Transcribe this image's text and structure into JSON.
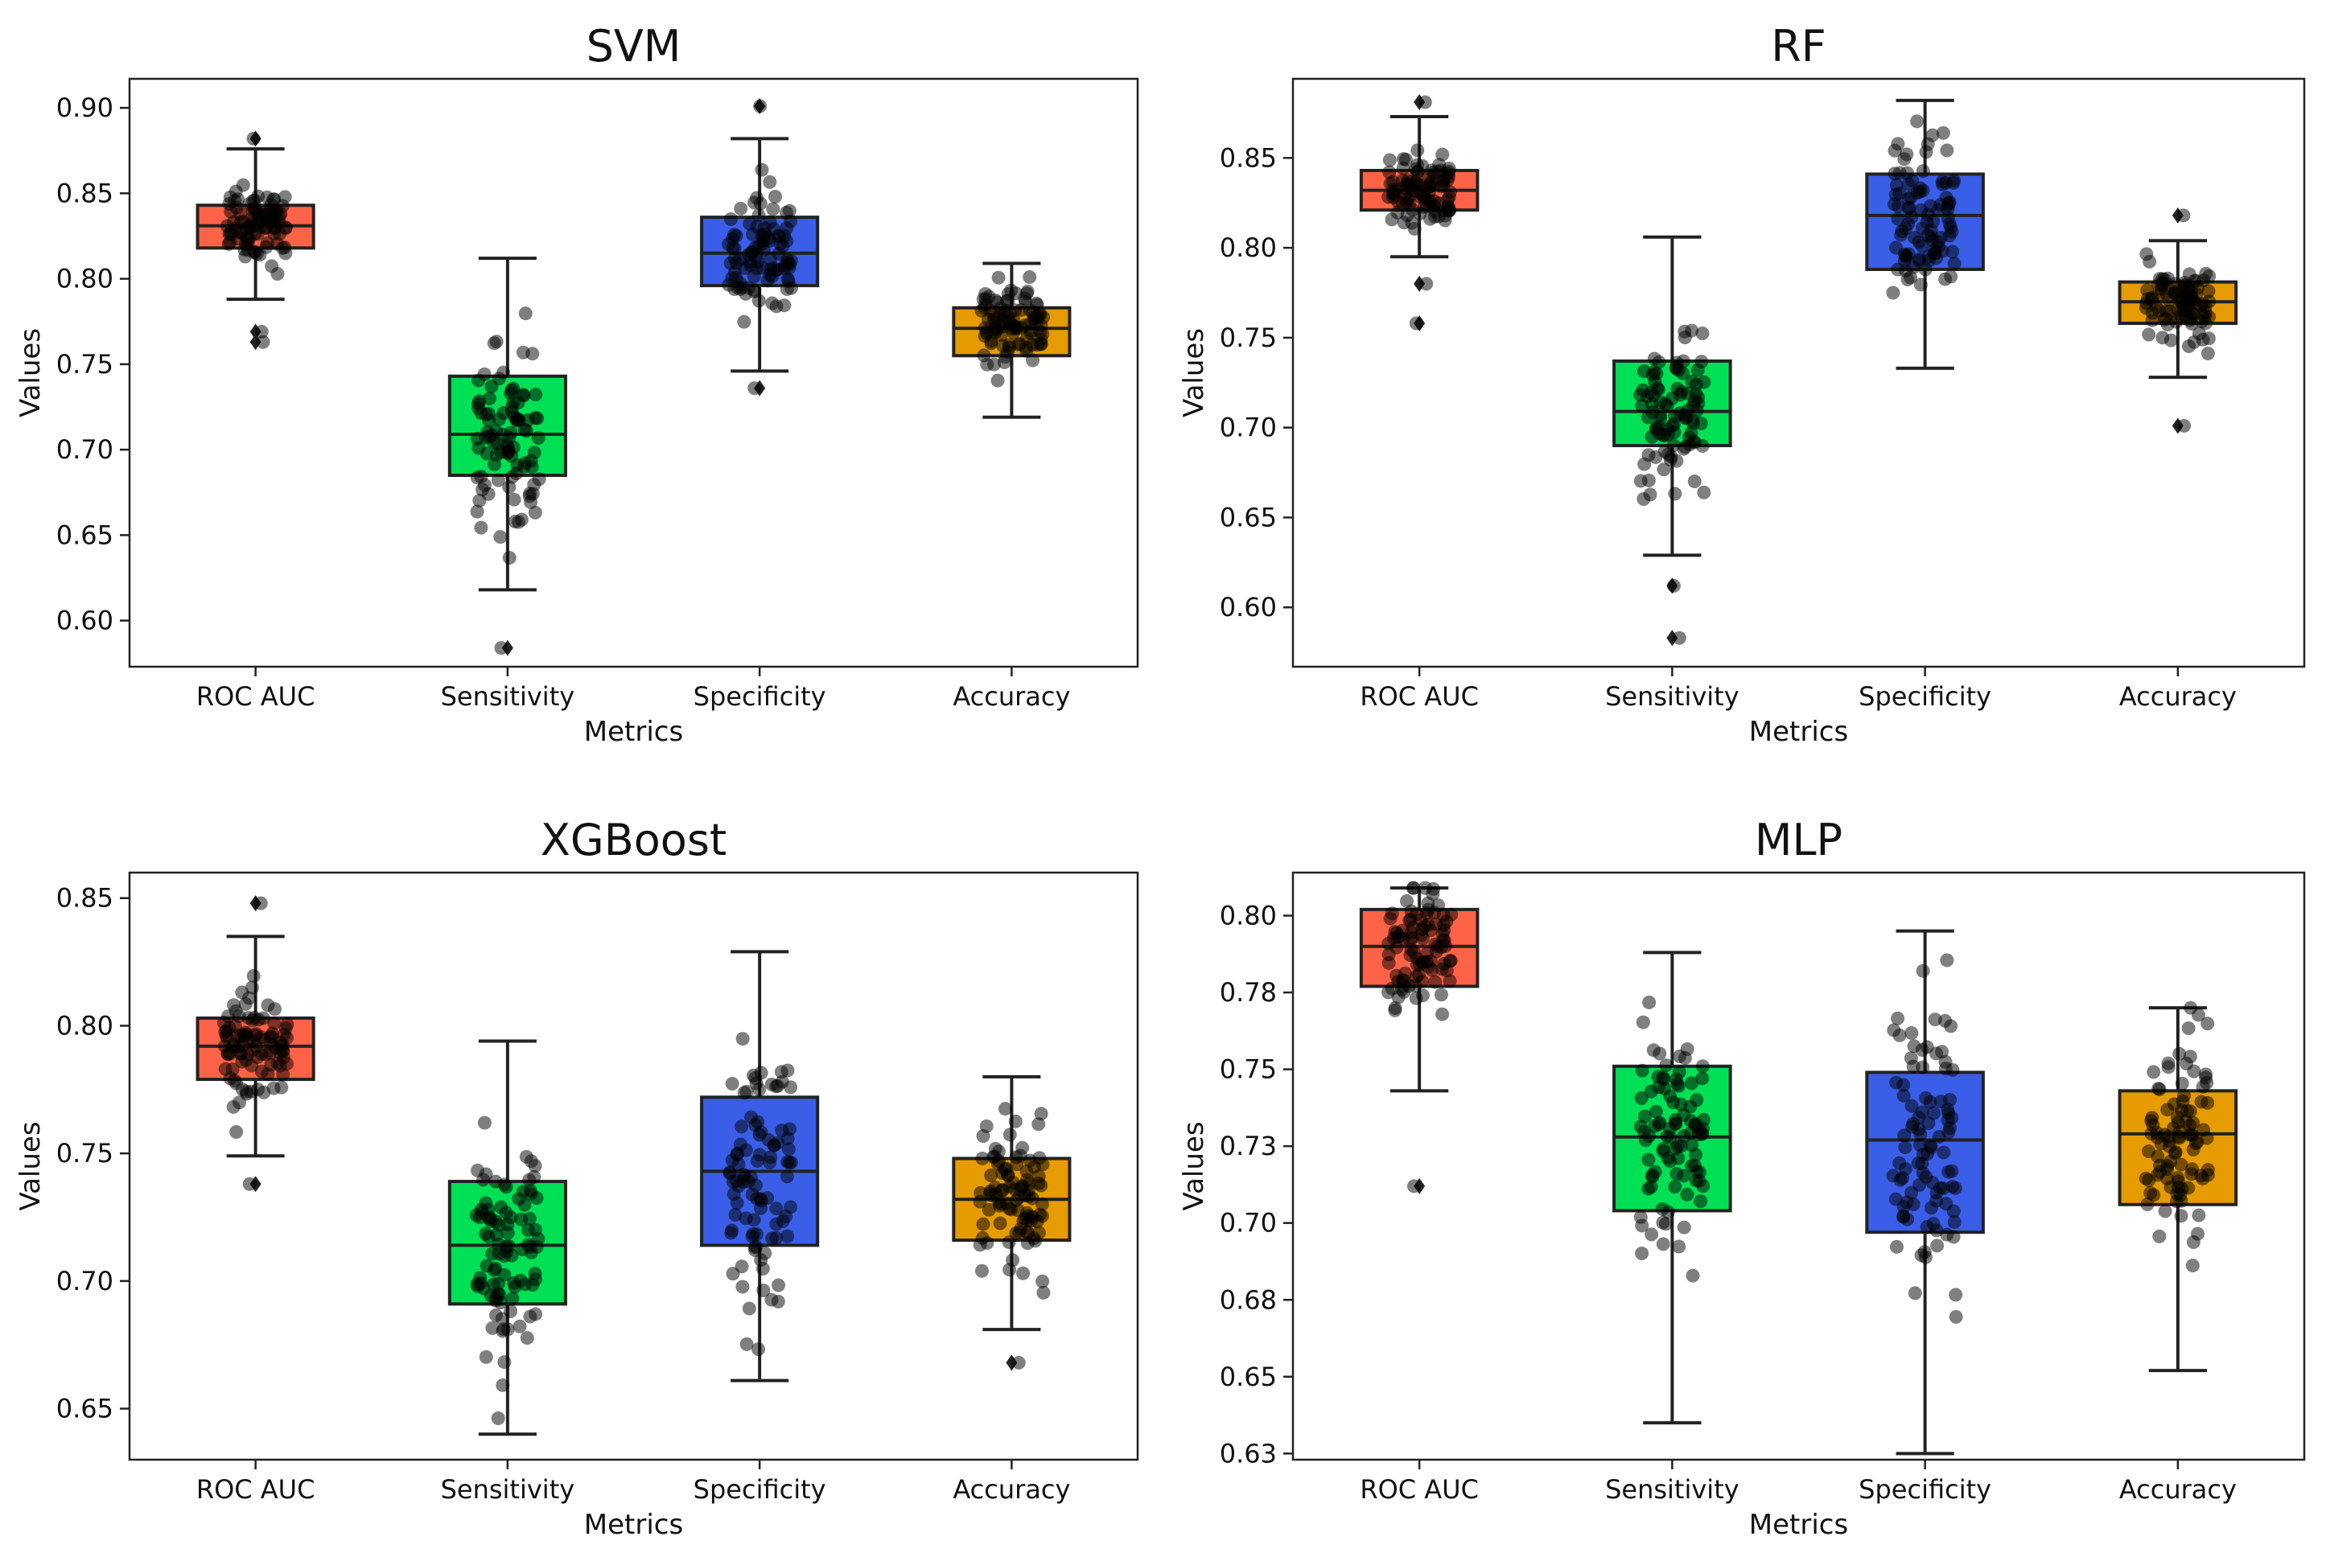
{
  "chart_data": [
    {
      "type": "box",
      "title": "SVM",
      "xlabel": "Metrics",
      "ylabel": "Values",
      "ylim": [
        0.573,
        0.917
      ],
      "yticks": [
        0.6,
        0.65,
        0.7,
        0.75,
        0.8,
        0.85,
        0.9
      ],
      "ytick_labels": [
        "0.60",
        "0.65",
        "0.70",
        "0.75",
        "0.80",
        "0.85",
        "0.90"
      ],
      "categories": [
        "ROC AUC",
        "Sensitivity",
        "Specificity",
        "Accuracy"
      ],
      "boxes": [
        {
          "category": "ROC AUC",
          "color": "#ff6347",
          "whisker_low": 0.788,
          "q1": 0.818,
          "median": 0.831,
          "q3": 0.843,
          "whisker_high": 0.876,
          "outliers": [
            0.763,
            0.769,
            0.882
          ]
        },
        {
          "category": "Sensitivity",
          "color": "#00e054",
          "whisker_low": 0.618,
          "q1": 0.685,
          "median": 0.709,
          "q3": 0.743,
          "whisker_high": 0.812,
          "outliers": [
            0.584
          ]
        },
        {
          "category": "Specificity",
          "color": "#3a5ee8",
          "whisker_low": 0.746,
          "q1": 0.796,
          "median": 0.815,
          "q3": 0.836,
          "whisker_high": 0.882,
          "outliers": [
            0.736,
            0.901
          ]
        },
        {
          "category": "Accuracy",
          "color": "#e69b00",
          "whisker_low": 0.719,
          "q1": 0.755,
          "median": 0.771,
          "q3": 0.783,
          "whisker_high": 0.809,
          "outliers": []
        }
      ]
    },
    {
      "type": "box",
      "title": "RF",
      "xlabel": "Metrics",
      "ylabel": "Values",
      "ylim": [
        0.567,
        0.894
      ],
      "yticks": [
        0.6,
        0.65,
        0.7,
        0.75,
        0.8,
        0.85
      ],
      "ytick_labels": [
        "0.60",
        "0.65",
        "0.70",
        "0.75",
        "0.80",
        "0.85"
      ],
      "categories": [
        "ROC AUC",
        "Sensitivity",
        "Specificity",
        "Accuracy"
      ],
      "boxes": [
        {
          "category": "ROC AUC",
          "color": "#ff6347",
          "whisker_low": 0.795,
          "q1": 0.821,
          "median": 0.832,
          "q3": 0.843,
          "whisker_high": 0.873,
          "outliers": [
            0.758,
            0.78,
            0.881
          ]
        },
        {
          "category": "Sensitivity",
          "color": "#00e054",
          "whisker_low": 0.629,
          "q1": 0.69,
          "median": 0.709,
          "q3": 0.737,
          "whisker_high": 0.806,
          "outliers": [
            0.583,
            0.612
          ]
        },
        {
          "category": "Specificity",
          "color": "#3a5ee8",
          "whisker_low": 0.733,
          "q1": 0.788,
          "median": 0.818,
          "q3": 0.841,
          "whisker_high": 0.882,
          "outliers": []
        },
        {
          "category": "Accuracy",
          "color": "#e69b00",
          "whisker_low": 0.728,
          "q1": 0.758,
          "median": 0.77,
          "q3": 0.781,
          "whisker_high": 0.804,
          "outliers": [
            0.701,
            0.818
          ]
        }
      ]
    },
    {
      "type": "box",
      "title": "XGBoost",
      "xlabel": "Metrics",
      "ylabel": "Values",
      "ylim": [
        0.63,
        0.86
      ],
      "yticks": [
        0.65,
        0.7,
        0.75,
        0.8,
        0.85
      ],
      "ytick_labels": [
        "0.65",
        "0.70",
        "0.75",
        "0.80",
        "0.85"
      ],
      "categories": [
        "ROC AUC",
        "Sensitivity",
        "Specificity",
        "Accuracy"
      ],
      "boxes": [
        {
          "category": "ROC AUC",
          "color": "#ff6347",
          "whisker_low": 0.749,
          "q1": 0.779,
          "median": 0.792,
          "q3": 0.803,
          "whisker_high": 0.835,
          "outliers": [
            0.738,
            0.848
          ]
        },
        {
          "category": "Sensitivity",
          "color": "#00e054",
          "whisker_low": 0.64,
          "q1": 0.691,
          "median": 0.714,
          "q3": 0.739,
          "whisker_high": 0.794,
          "outliers": []
        },
        {
          "category": "Specificity",
          "color": "#3a5ee8",
          "whisker_low": 0.661,
          "q1": 0.714,
          "median": 0.743,
          "q3": 0.772,
          "whisker_high": 0.829,
          "outliers": []
        },
        {
          "category": "Accuracy",
          "color": "#e69b00",
          "whisker_low": 0.681,
          "q1": 0.716,
          "median": 0.732,
          "q3": 0.748,
          "whisker_high": 0.78,
          "outliers": [
            0.668
          ]
        }
      ]
    },
    {
      "type": "box",
      "title": "MLP",
      "xlabel": "Metrics",
      "ylabel": "Values",
      "ylim": [
        0.623,
        0.814
      ],
      "yticks": [
        0.625,
        0.65,
        0.675,
        0.7,
        0.725,
        0.75,
        0.775,
        0.8
      ],
      "ytick_labels": [
        "0.63",
        "0.65",
        "0.68",
        "0.70",
        "0.73",
        "0.75",
        "0.78",
        "0.80"
      ],
      "categories": [
        "ROC AUC",
        "Sensitivity",
        "Specificity",
        "Accuracy"
      ],
      "boxes": [
        {
          "category": "ROC AUC",
          "color": "#ff6347",
          "whisker_low": 0.743,
          "q1": 0.777,
          "median": 0.79,
          "q3": 0.802,
          "whisker_high": 0.809,
          "outliers": [
            0.712
          ]
        },
        {
          "category": "Sensitivity",
          "color": "#00e054",
          "whisker_low": 0.635,
          "q1": 0.704,
          "median": 0.728,
          "q3": 0.751,
          "whisker_high": 0.788,
          "outliers": []
        },
        {
          "category": "Specificity",
          "color": "#3a5ee8",
          "whisker_low": 0.625,
          "q1": 0.697,
          "median": 0.727,
          "q3": 0.749,
          "whisker_high": 0.795,
          "outliers": []
        },
        {
          "category": "Accuracy",
          "color": "#e69b00",
          "whisker_low": 0.652,
          "q1": 0.706,
          "median": 0.729,
          "q3": 0.743,
          "whisker_high": 0.77,
          "outliers": []
        }
      ]
    }
  ]
}
